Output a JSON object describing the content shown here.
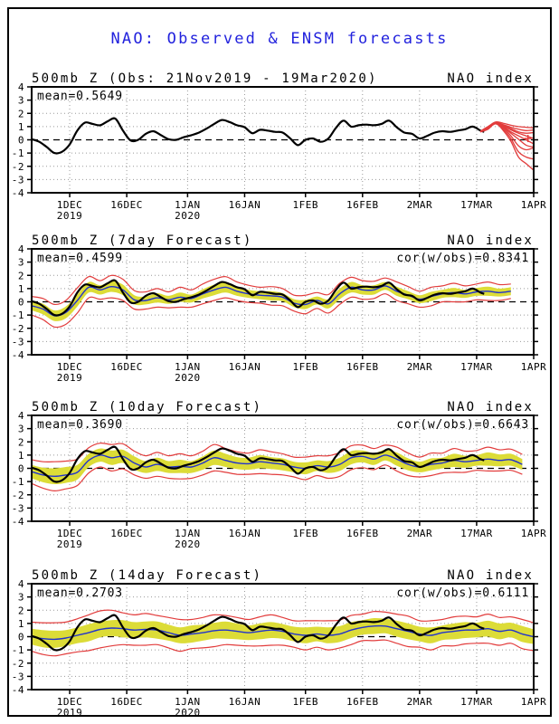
{
  "title": "NAO: Observed & ENSM forecasts",
  "colors": {
    "title": "#2222dd",
    "observed": "#000000",
    "ensemble_mean": "#2233cc",
    "ensemble_envelope": "#e23c3c",
    "ensemble_band": "#dcdc37",
    "grid": "#9a9a9a",
    "zero_line": "#000000",
    "frame": "#000000"
  },
  "chart_data": {
    "type": "line",
    "x_axis": {
      "start_date": "21Nov2019",
      "end_date": "1Apr2020",
      "range_days": [
        0,
        132
      ]
    },
    "y_axis": {
      "min": -4,
      "max": 4,
      "ticks": [
        4,
        3,
        2,
        1,
        0,
        -1,
        -2,
        -3,
        -4
      ],
      "zero_line": "dashed"
    },
    "x_ticks": [
      {
        "day": 10,
        "label": "1DEC",
        "year": "2019"
      },
      {
        "day": 25,
        "label": "16DEC"
      },
      {
        "day": 41,
        "label": "1JAN",
        "year": "2020"
      },
      {
        "day": 56,
        "label": "16JAN"
      },
      {
        "day": 72,
        "label": "1FEB"
      },
      {
        "day": 87,
        "label": "16FEB"
      },
      {
        "day": 102,
        "label": "2MAR"
      },
      {
        "day": 117,
        "label": "17MAR"
      },
      {
        "day": 132,
        "label": "1APR"
      }
    ],
    "observed": {
      "name": "Observed NAO index (black)",
      "days": [
        0,
        2,
        4,
        6,
        8,
        10,
        12,
        14,
        16,
        18,
        20,
        22,
        24,
        26,
        28,
        30,
        32,
        34,
        36,
        38,
        40,
        42,
        44,
        46,
        48,
        50,
        52,
        54,
        56,
        58,
        60,
        62,
        64,
        66,
        68,
        70,
        72,
        74,
        76,
        78,
        80,
        82,
        84,
        86,
        88,
        90,
        92,
        94,
        96,
        98,
        100,
        102,
        104,
        106,
        108,
        110,
        112,
        114,
        116,
        118,
        119
      ],
      "values": [
        0.05,
        -0.15,
        -0.55,
        -1.0,
        -0.9,
        -0.35,
        0.7,
        1.3,
        1.2,
        1.1,
        1.4,
        1.6,
        0.7,
        -0.05,
        0.0,
        0.45,
        0.65,
        0.35,
        0.05,
        0.0,
        0.2,
        0.35,
        0.55,
        0.85,
        1.2,
        1.5,
        1.35,
        1.1,
        0.95,
        0.5,
        0.75,
        0.7,
        0.6,
        0.55,
        0.1,
        -0.4,
        0.0,
        0.1,
        -0.15,
        0.1,
        0.9,
        1.45,
        1.0,
        1.1,
        1.15,
        1.1,
        1.2,
        1.45,
        0.95,
        0.55,
        0.45,
        0.1,
        0.3,
        0.55,
        0.65,
        0.6,
        0.7,
        0.8,
        1.0,
        0.7,
        0.6
      ]
    },
    "panels": [
      {
        "key": "observed",
        "title_left": "500mb Z (Obs: 21Nov2019 - 19Mar2020)",
        "title_right": "NAO index",
        "mean_label": "mean=0.5649",
        "mean_value": 0.5649,
        "ensemble": {
          "name": "ENSM member forecasts beyond 19Mar (red)",
          "days": [
            118,
            120,
            122,
            124,
            126,
            128,
            130,
            132
          ],
          "members": [
            [
              0.65,
              1.0,
              1.35,
              1.25,
              1.1,
              1.0,
              0.95,
              0.9
            ],
            [
              0.65,
              1.0,
              1.3,
              1.15,
              0.95,
              0.8,
              0.7,
              0.75
            ],
            [
              0.65,
              0.95,
              1.3,
              1.1,
              0.85,
              0.6,
              0.5,
              0.55
            ],
            [
              0.65,
              0.95,
              1.25,
              1.05,
              0.75,
              0.5,
              0.3,
              0.1
            ],
            [
              0.6,
              0.9,
              1.3,
              1.0,
              0.6,
              0.3,
              0.0,
              -0.3
            ],
            [
              0.6,
              0.9,
              1.25,
              0.95,
              0.5,
              0.05,
              -0.4,
              -0.55
            ],
            [
              0.6,
              0.85,
              1.3,
              0.9,
              0.3,
              -0.45,
              -0.75,
              -0.6
            ],
            [
              0.6,
              0.85,
              1.2,
              0.8,
              0.1,
              -0.9,
              -1.3,
              -1.45
            ],
            [
              0.6,
              0.8,
              1.25,
              0.7,
              -0.1,
              -1.3,
              -1.8,
              -2.3
            ]
          ],
          "plus_marker": {
            "day": 130.5,
            "value": 0.1
          }
        }
      },
      {
        "key": "fc7",
        "title_left": "500mb Z (7day Forecast)",
        "title_right": "NAO index",
        "mean_label": "mean=0.4599",
        "mean_value": 0.4599,
        "cor_label": "cor(w/obs)=0.8341",
        "cor_value": 0.8341,
        "forecast": {
          "days": [
            0,
            3,
            6,
            9,
            12,
            15,
            18,
            21,
            24,
            27,
            30,
            33,
            36,
            39,
            42,
            45,
            48,
            51,
            54,
            57,
            60,
            63,
            66,
            69,
            72,
            75,
            78,
            81,
            84,
            87,
            90,
            93,
            96,
            99,
            102,
            105,
            108,
            111,
            114,
            117,
            120,
            123,
            126
          ],
          "mean": [
            -0.3,
            -0.55,
            -1.05,
            -0.8,
            0.1,
            1.1,
            0.9,
            1.15,
            0.9,
            0.15,
            0.1,
            0.3,
            0.15,
            0.35,
            0.25,
            0.6,
            0.9,
            1.1,
            0.8,
            0.6,
            0.5,
            0.45,
            0.35,
            -0.1,
            -0.2,
            0.1,
            -0.15,
            0.6,
            1.1,
            0.9,
            0.9,
            1.2,
            0.8,
            0.5,
            0.2,
            0.4,
            0.6,
            0.7,
            0.6,
            0.75,
            0.8,
            0.7,
            0.8
          ],
          "yellow_hw": [
            0.35,
            0.4,
            0.4,
            0.45,
            0.45,
            0.4,
            0.35,
            0.4,
            0.4,
            0.35,
            0.3,
            0.35,
            0.3,
            0.35,
            0.3,
            0.35,
            0.4,
            0.4,
            0.35,
            0.3,
            0.3,
            0.35,
            0.3,
            0.3,
            0.35,
            0.3,
            0.35,
            0.4,
            0.4,
            0.35,
            0.35,
            0.3,
            0.35,
            0.3,
            0.3,
            0.35,
            0.3,
            0.35,
            0.3,
            0.3,
            0.35,
            0.3,
            0.3
          ],
          "red_hw": [
            0.7,
            0.8,
            0.85,
            0.9,
            0.95,
            0.8,
            0.7,
            0.85,
            0.8,
            0.7,
            0.65,
            0.7,
            0.6,
            0.75,
            0.65,
            0.75,
            0.8,
            0.8,
            0.7,
            0.65,
            0.6,
            0.7,
            0.65,
            0.6,
            0.7,
            0.6,
            0.7,
            0.8,
            0.75,
            0.7,
            0.65,
            0.6,
            0.7,
            0.65,
            0.6,
            0.7,
            0.6,
            0.7,
            0.6,
            0.6,
            0.7,
            0.6,
            0.55
          ]
        }
      },
      {
        "key": "fc10",
        "title_left": "500mb Z (10day Forecast)",
        "title_right": "NAO index",
        "mean_label": "mean=0.3690",
        "mean_value": 0.369,
        "cor_label": "cor(w/obs)=0.6643",
        "cor_value": 0.6643,
        "forecast": {
          "days": [
            0,
            3,
            6,
            9,
            12,
            15,
            18,
            21,
            24,
            27,
            30,
            33,
            36,
            39,
            42,
            45,
            48,
            51,
            54,
            57,
            60,
            63,
            66,
            69,
            72,
            75,
            78,
            81,
            84,
            87,
            90,
            93,
            96,
            99,
            102,
            105,
            108,
            111,
            114,
            117,
            120,
            123,
            126,
            129
          ],
          "mean": [
            -0.25,
            -0.5,
            -0.6,
            -0.5,
            -0.3,
            0.6,
            1.0,
            0.8,
            0.9,
            0.4,
            0.1,
            0.3,
            0.1,
            0.15,
            0.1,
            0.4,
            0.8,
            0.6,
            0.4,
            0.35,
            0.5,
            0.4,
            0.3,
            0.1,
            0.0,
            0.2,
            0.1,
            0.3,
            0.8,
            0.9,
            0.7,
            1.0,
            0.7,
            0.3,
            0.1,
            0.3,
            0.4,
            0.6,
            0.5,
            0.6,
            0.7,
            0.6,
            0.65,
            0.3
          ],
          "yellow_hw": [
            0.5,
            0.55,
            0.6,
            0.6,
            0.55,
            0.5,
            0.5,
            0.55,
            0.5,
            0.5,
            0.45,
            0.5,
            0.45,
            0.5,
            0.45,
            0.5,
            0.55,
            0.5,
            0.45,
            0.45,
            0.5,
            0.45,
            0.45,
            0.4,
            0.45,
            0.4,
            0.45,
            0.5,
            0.5,
            0.45,
            0.45,
            0.4,
            0.5,
            0.45,
            0.4,
            0.45,
            0.4,
            0.5,
            0.45,
            0.4,
            0.5,
            0.45,
            0.45,
            0.4
          ],
          "red_hw": [
            0.9,
            1.0,
            1.1,
            1.05,
            1.0,
            0.95,
            0.9,
            1.0,
            0.95,
            0.9,
            0.85,
            0.9,
            0.85,
            0.95,
            0.85,
            0.9,
            1.0,
            0.9,
            0.85,
            0.8,
            0.9,
            0.85,
            0.8,
            0.75,
            0.85,
            0.75,
            0.85,
            0.9,
            0.9,
            0.85,
            0.8,
            0.75,
            0.9,
            0.85,
            0.75,
            0.85,
            0.75,
            0.9,
            0.8,
            0.75,
            0.9,
            0.8,
            0.8,
            0.75
          ]
        }
      },
      {
        "key": "fc14",
        "title_left": "500mb Z (14day Forecast)",
        "title_right": "NAO index",
        "mean_label": "mean=0.2703",
        "mean_value": 0.2703,
        "cor_label": "cor(w/obs)=0.6111",
        "cor_value": 0.6111,
        "forecast": {
          "days": [
            0,
            3,
            6,
            9,
            12,
            15,
            18,
            21,
            24,
            27,
            30,
            33,
            36,
            39,
            42,
            45,
            48,
            51,
            54,
            57,
            60,
            63,
            66,
            69,
            72,
            75,
            78,
            81,
            84,
            87,
            90,
            93,
            96,
            99,
            102,
            105,
            108,
            111,
            114,
            117,
            120,
            123,
            126,
            129,
            132
          ],
          "mean": [
            0.0,
            -0.15,
            -0.2,
            -0.1,
            0.1,
            0.3,
            0.55,
            0.65,
            0.6,
            0.5,
            0.55,
            0.5,
            0.3,
            0.1,
            0.2,
            0.3,
            0.45,
            0.5,
            0.4,
            0.3,
            0.4,
            0.5,
            0.4,
            0.2,
            0.1,
            0.2,
            0.1,
            0.2,
            0.5,
            0.7,
            0.8,
            0.8,
            0.6,
            0.4,
            0.2,
            0.1,
            0.3,
            0.4,
            0.5,
            0.5,
            0.6,
            0.4,
            0.5,
            0.2,
            0.0
          ],
          "yellow_hw": [
            0.6,
            0.65,
            0.65,
            0.6,
            0.6,
            0.65,
            0.6,
            0.6,
            0.65,
            0.6,
            0.6,
            0.65,
            0.6,
            0.6,
            0.65,
            0.6,
            0.6,
            0.65,
            0.6,
            0.55,
            0.6,
            0.6,
            0.55,
            0.55,
            0.6,
            0.55,
            0.6,
            0.6,
            0.6,
            0.55,
            0.6,
            0.55,
            0.6,
            0.6,
            0.55,
            0.6,
            0.55,
            0.6,
            0.6,
            0.55,
            0.6,
            0.6,
            0.55,
            0.6,
            0.55
          ],
          "red_hw": [
            1.1,
            1.2,
            1.25,
            1.2,
            1.25,
            1.35,
            1.4,
            1.35,
            1.2,
            1.15,
            1.2,
            1.1,
            1.15,
            1.2,
            1.1,
            1.15,
            1.2,
            1.1,
            1.05,
            1.0,
            1.1,
            1.15,
            1.05,
            1.0,
            1.1,
            1.0,
            1.1,
            1.05,
            1.1,
            1.0,
            1.1,
            1.05,
            1.1,
            1.15,
            1.0,
            1.1,
            1.0,
            1.1,
            1.05,
            1.0,
            1.1,
            1.05,
            1.0,
            1.1,
            1.05
          ]
        }
      }
    ]
  }
}
